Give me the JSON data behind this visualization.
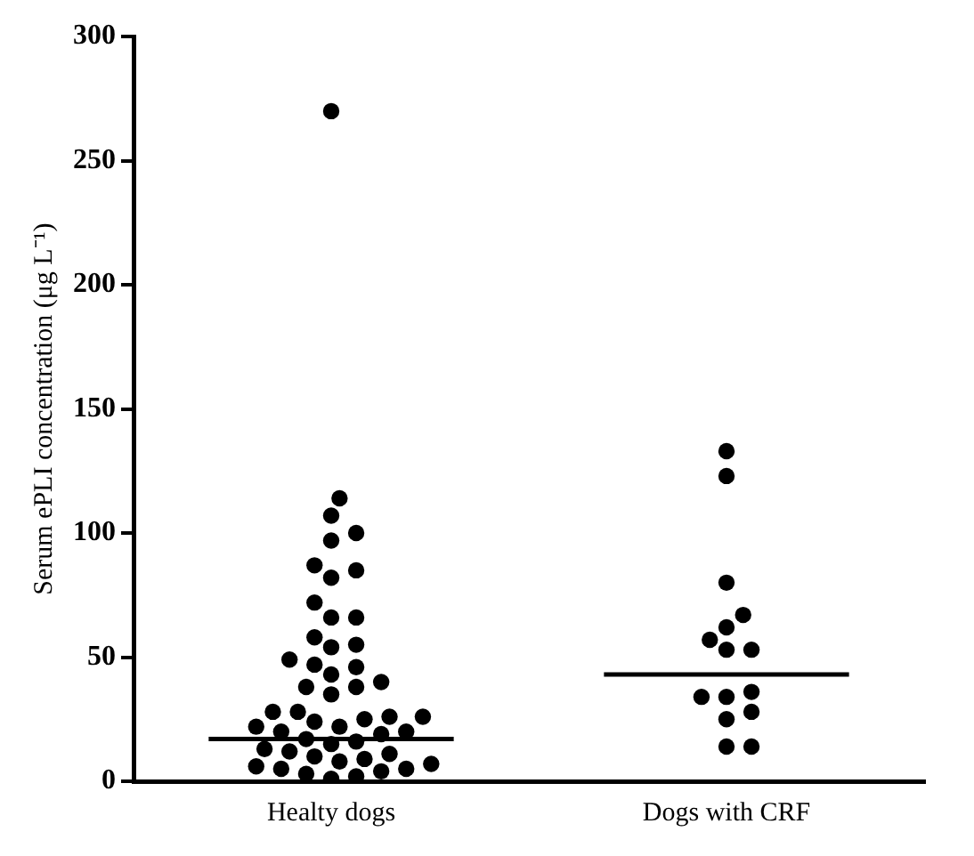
{
  "chart_data": {
    "type": "scatter",
    "ylabel": "Serum ePLI concentration (μg L⁻¹)",
    "categories": [
      "Healty dogs",
      "Dogs with CRF"
    ],
    "ylim": [
      0,
      300
    ],
    "yticks": [
      0,
      50,
      100,
      150,
      200,
      250,
      300
    ],
    "grid": false,
    "legend": false,
    "series": [
      {
        "marker": "circle",
        "color": "#000000",
        "x": [
          "Healty dogs",
          "Healty dogs",
          "Healty dogs",
          "Healty dogs",
          "Healty dogs",
          "Healty dogs",
          "Healty dogs",
          "Healty dogs",
          "Healty dogs",
          "Healty dogs",
          "Healty dogs",
          "Healty dogs",
          "Healty dogs",
          "Healty dogs",
          "Healty dogs",
          "Healty dogs",
          "Healty dogs",
          "Healty dogs",
          "Healty dogs",
          "Healty dogs",
          "Healty dogs",
          "Healty dogs",
          "Healty dogs",
          "Healty dogs",
          "Healty dogs",
          "Healty dogs",
          "Healty dogs",
          "Healty dogs",
          "Healty dogs",
          "Healty dogs",
          "Healty dogs",
          "Healty dogs",
          "Healty dogs",
          "Healty dogs",
          "Healty dogs",
          "Healty dogs",
          "Healty dogs",
          "Healty dogs",
          "Healty dogs",
          "Healty dogs",
          "Healty dogs",
          "Healty dogs",
          "Healty dogs",
          "Healty dogs",
          "Healty dogs",
          "Healty dogs",
          "Healty dogs",
          "Healty dogs",
          "Healty dogs",
          "Healty dogs",
          "Dogs with CRF",
          "Dogs with CRF",
          "Dogs with CRF",
          "Dogs with CRF",
          "Dogs with CRF",
          "Dogs with CRF",
          "Dogs with CRF",
          "Dogs with CRF",
          "Dogs with CRF",
          "Dogs with CRF",
          "Dogs with CRF",
          "Dogs with CRF",
          "Dogs with CRF",
          "Dogs with CRF",
          "Dogs with CRF"
        ],
        "values": [
          270,
          114,
          107,
          100,
          97,
          87,
          85,
          82,
          72,
          66,
          66,
          58,
          55,
          54,
          49,
          47,
          46,
          43,
          40,
          38,
          38,
          35,
          28,
          28,
          26,
          26,
          25,
          24,
          22,
          22,
          20,
          20,
          19,
          17,
          16,
          15,
          13,
          12,
          11,
          10,
          9,
          8,
          7,
          6,
          5,
          5,
          4,
          3,
          2,
          1,
          133,
          123,
          80,
          67,
          62,
          57,
          53,
          53,
          36,
          34,
          34,
          28,
          25,
          14,
          14
        ]
      }
    ],
    "ref_lines": [
      {
        "axis": "y",
        "value": 17,
        "color": "#000000"
      },
      {
        "axis": "y",
        "value": 43,
        "color": "#000000"
      }
    ]
  }
}
